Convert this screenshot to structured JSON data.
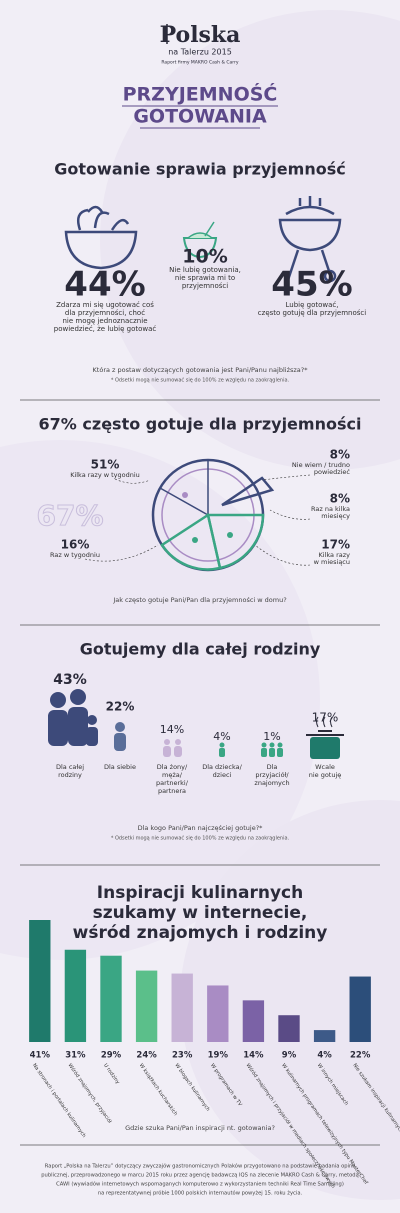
{
  "header": {
    "logo": "Polska",
    "subtitle": "na Talerzu 2015",
    "publisher": "Raport firmy MAKRO Cash & Carry",
    "title": [
      "PRZYJEMNOŚĆ",
      "GOTOWANIA"
    ]
  },
  "attitude": {
    "heading": "Gotowanie sprawia przyjemność",
    "items": [
      {
        "value": "44%",
        "text": [
          "Zdarza mi się ugotować coś",
          "dla przyjemności, choć",
          "nie mogę jednoznacznie",
          "powiedzieć, że lubię gotować"
        ]
      },
      {
        "value": "10%",
        "text": [
          "Nie lubię gotowania,",
          "nie sprawia mi to",
          "przyjemności"
        ]
      },
      {
        "value": "45%",
        "text": [
          "Lubię gotować,",
          "często gotuję dla przyjemności"
        ]
      }
    ],
    "question": "Która z postaw dotyczących gotowania jest Pani/Panu najbliższa?*",
    "note": "* Odsetki mogą nie sumować się do 100% ze względu na zaokrąglenia."
  },
  "frequency": {
    "heading": "67% często gotuje dla przyjemności",
    "total": "67%",
    "items": [
      {
        "value": "51%",
        "text": [
          "Kilka razy w tygodniu"
        ]
      },
      {
        "value": "16%",
        "text": [
          "Raz w tygodniu"
        ]
      },
      {
        "value": "8%",
        "text": [
          "Nie wiem / trudno",
          "powiedzieć"
        ]
      },
      {
        "value": "8%",
        "text": [
          "Raz na kilka",
          "miesięcy"
        ]
      },
      {
        "value": "17%",
        "text": [
          "Kilka razy",
          "w miesiącu"
        ]
      }
    ],
    "question": "Jak często gotuje Pani/Pan dla przyjemności w domu?"
  },
  "family": {
    "heading": "Gotujemy dla całej rodziny",
    "items": [
      {
        "value": "43%",
        "text": [
          "Dla całej",
          "rodziny"
        ]
      },
      {
        "value": "22%",
        "text": [
          "Dla siebie"
        ]
      },
      {
        "value": "14%",
        "text": [
          "Dla żony/",
          "męża/",
          "partnerki/",
          "partnera"
        ]
      },
      {
        "value": "4%",
        "text": [
          "Dla dziecka/",
          "dzieci"
        ]
      },
      {
        "value": "1%",
        "text": [
          "Dla",
          "przyjaciół/",
          "znajomych"
        ]
      },
      {
        "value": "17%",
        "text": [
          "Wcale",
          "nie gotuję"
        ]
      }
    ],
    "question": "Dla kogo Pani/Pan najczęściej gotuje?*",
    "note": "* Odsetki mogą nie sumować się do 100% ze względu na zaokrąglenia."
  },
  "chart_data": {
    "type": "bar",
    "title": [
      "Inspiracji kulinarnych",
      "szukamy w internecie,",
      "wśród znajomych i rodziny"
    ],
    "categories": [
      "Na stronach i portalach kulinarnych",
      "Wśród znajomych, przyjaciół",
      "U rodziny",
      "W książkach kucharskich",
      "W blogach kulinarnych",
      "W programach w TV",
      "Wśród znajomych i przyjaciół w mediach społecznościowych",
      "W kulinarnych programach telewizyjnych typu MasterChef",
      "W innych miejscach",
      "Nie szukam inspiracji kulinarnych"
    ],
    "values": [
      41,
      31,
      29,
      24,
      23,
      19,
      14,
      9,
      4,
      22
    ],
    "value_labels": [
      "41%",
      "31%",
      "29%",
      "24%",
      "23%",
      "19%",
      "14%",
      "9%",
      "4%",
      "22%"
    ],
    "colors": [
      "#1f7a6b",
      "#2a9478",
      "#3aa684",
      "#5bbf8a",
      "#c7b3d6",
      "#a98cc4",
      "#7b62a6",
      "#5a4b86",
      "#3d5a88",
      "#2c4e7a"
    ],
    "ylim": [
      0,
      41
    ],
    "question": "Gdzie szuka Pani/Pan inspiracji nt. gotowania?"
  },
  "footer": [
    "Raport „Polska na Talerzu” dotyczący zwyczajów gastronomicznych Polaków przygotowano na podstawie badania opinii",
    "publicznej, przeprowadzonego w marcu 2015 roku przez agencję badawczą IQS na zlecenie MAKRO Cash & Carry, metodą",
    "CAWI (wywiadów internetowych wspomaganych komputerowo z wykorzystaniem techniki Real Time Sampling)",
    "na reprezentatywnej próbie 1000 polskich internautów powyżej 15. roku życia."
  ]
}
